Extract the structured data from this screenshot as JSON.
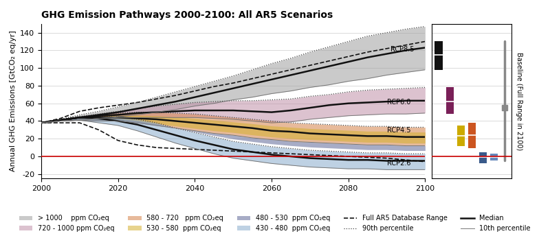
{
  "chart_data": [
    {
      "type": "line",
      "title": "GHG Emission Pathways 2000-2100: All AR5 Scenarios",
      "y_label": "Annual GHG Emissions [GtCO₂ eq/yr]",
      "x": [
        2000,
        2005,
        2010,
        2015,
        2020,
        2025,
        2030,
        2035,
        2040,
        2045,
        2050,
        2055,
        2060,
        2065,
        2070,
        2075,
        2080,
        2085,
        2090,
        2095,
        2100
      ],
      "xlim": [
        2000,
        2100
      ],
      "xticks": [
        2000,
        2020,
        2040,
        2060,
        2080,
        2100
      ],
      "ylim": [
        -25,
        150
      ],
      "yticks": [
        -20,
        0,
        20,
        40,
        60,
        80,
        100,
        120,
        140
      ],
      "grid": "y",
      "legend": "lower center",
      "series": [
        {
          "name": "> 1000    ppm CO₂eq",
          "type": "area",
          "color": "#a0a0a0",
          "from": [
            38,
            40,
            41,
            43,
            45,
            47,
            50,
            53,
            57,
            60,
            64,
            67,
            71,
            74,
            78,
            81,
            85,
            88,
            92,
            95,
            98
          ],
          "to": [
            38,
            42,
            47,
            51,
            56,
            61,
            67,
            73,
            79,
            85,
            91,
            98,
            105,
            111,
            118,
            124,
            130,
            136,
            140,
            144,
            147
          ]
        },
        {
          "name": "720 - 1000 ppm CO₂eq",
          "type": "area",
          "color": "#c090a8",
          "from": [
            38,
            40,
            41,
            43,
            44,
            44,
            44,
            44,
            44,
            43,
            42,
            40,
            38,
            39,
            42,
            44,
            46,
            47,
            48,
            48,
            49
          ],
          "to": [
            38,
            42,
            45,
            48,
            51,
            54,
            57,
            59,
            61,
            62,
            63,
            63,
            64,
            65,
            68,
            70,
            73,
            75,
            76,
            77,
            78
          ]
        },
        {
          "name": "580 - 720   ppm CO₂eq",
          "type": "area",
          "color": "#d4824a",
          "from": [
            38,
            40,
            41,
            40,
            40,
            38,
            35,
            32,
            29,
            26,
            24,
            21,
            19,
            17,
            16,
            15,
            14,
            13,
            13,
            12,
            12
          ],
          "to": [
            38,
            42,
            45,
            47,
            49,
            50,
            50,
            49,
            48,
            46,
            44,
            42,
            40,
            38,
            37,
            36,
            35,
            34,
            34,
            33,
            33
          ]
        },
        {
          "name": "530 - 580  ppm CO₂eq",
          "type": "area",
          "color": "#d4b030",
          "from": [
            38,
            40.3,
            41.9,
            41.2,
            41.2,
            39.5,
            37.1,
            34.4,
            31.7,
            29,
            27,
            24.3,
            22,
            20.3,
            19,
            18,
            17,
            16,
            16,
            15,
            15
          ],
          "to": [
            38,
            41.5,
            44.5,
            45.5,
            46.5,
            46.5,
            46,
            44.5,
            43,
            41,
            39,
            37,
            34.5,
            33,
            31.5,
            30.5,
            29.5,
            28.5,
            28.5,
            27.5,
            27.5
          ]
        },
        {
          "name": "480 - 530  ppm CO₂eq",
          "type": "area",
          "color": "#606898",
          "from": [
            38,
            41.2,
            43.4,
            43,
            43,
            40.4,
            36.8,
            32,
            27.8,
            23.6,
            19.8,
            16.8,
            14.2,
            12.2,
            10.6,
            9.6,
            8.6,
            7.6,
            7.6,
            6.6,
            6.6
          ],
          "to": [
            38,
            40,
            41,
            40,
            40,
            38,
            35,
            32,
            29,
            26,
            24,
            21,
            19,
            17,
            16,
            15,
            14,
            13,
            13,
            12,
            12
          ]
        },
        {
          "name": "430 - 480  ppm CO₂eq",
          "type": "area",
          "color": "#8aaccc",
          "from": [
            38,
            40,
            41,
            38,
            35,
            29,
            22,
            15,
            9,
            3,
            -2,
            -5,
            -8,
            -10,
            -12,
            -13,
            -14,
            -14,
            -15,
            -15,
            -15
          ],
          "to": [
            38,
            42,
            45,
            45,
            45,
            42,
            38,
            32,
            27,
            22,
            17,
            14,
            11,
            9,
            7,
            6,
            5,
            4,
            4,
            3,
            3
          ]
        },
        {
          "name": "Full AR5 Database Range",
          "type": "line",
          "line_style": "dashed",
          "color": "#111111",
          "lines": [
            [
              38,
              43,
              51,
              55,
              58,
              61,
              65,
              69,
              74,
              79,
              83,
              88,
              93,
              98,
              103,
              108,
              113,
              118,
              122,
              126,
              130
            ],
            [
              38,
              38,
              38,
              30,
              18,
              13,
              10,
              9,
              8,
              7,
              6,
              5,
              4,
              3,
              2,
              1,
              0,
              -1,
              -2,
              -4,
              -6
            ]
          ]
        },
        {
          "name": "90th percentile",
          "type": "line",
          "line_style": "dotted",
          "color": "#444444",
          "lines": [
            [
              38,
              42,
              47,
              51,
              56,
              61,
              67,
              73,
              79,
              85,
              91,
              98,
              105,
              111,
              118,
              124,
              130,
              136,
              140,
              144,
              147
            ],
            [
              38,
              42,
              45,
              48,
              51,
              54,
              57,
              59,
              61,
              62,
              63,
              63,
              64,
              65,
              68,
              70,
              73,
              75,
              76,
              77,
              78
            ],
            [
              38,
              42,
              45,
              47,
              49,
              50,
              50,
              49,
              48,
              46,
              44,
              42,
              40,
              38,
              37,
              36,
              35,
              34,
              34,
              33,
              33
            ],
            [
              38,
              42,
              45,
              45,
              45,
              42,
              38,
              32,
              27,
              22,
              17,
              14,
              11,
              9,
              7,
              6,
              5,
              4,
              4,
              3,
              3
            ]
          ]
        },
        {
          "name": "Median",
          "type": "line",
          "line_style": "solid",
          "color": "#111111",
          "lines": [
            [
              38,
              41,
              44,
              47,
              50,
              54,
              58,
              62,
              67,
              72,
              77,
              82,
              87,
              92,
              97,
              102,
              107,
              112,
              116,
              120,
              123
            ],
            [
              38,
              41,
              44,
              46,
              47,
              49,
              50,
              51,
              52,
              52,
              52,
              51,
              50,
              52,
              55,
              58,
              60,
              61,
              62,
              63,
              63
            ],
            [
              38,
              41,
              44,
              44,
              44,
              43,
              42,
              40,
              38,
              36,
              34,
              32,
              29,
              28,
              26,
              25,
              24,
              23,
              23,
              22,
              22
            ],
            [
              38,
              41,
              44,
              43,
              40,
              36,
              30,
              24,
              18,
              13,
              8,
              5,
              2,
              0,
              -2,
              -3,
              -4,
              -4,
              -5,
              -5,
              -5
            ]
          ]
        },
        {
          "name": "10th percentile",
          "type": "line",
          "line_style": "solid",
          "color": "#777777",
          "lines": [
            [
              38,
              40,
              41,
              43,
              45,
              47,
              50,
              53,
              57,
              60,
              64,
              67,
              71,
              74,
              78,
              81,
              85,
              88,
              92,
              95,
              98
            ],
            [
              38,
              40,
              41,
              43,
              44,
              44,
              44,
              44,
              44,
              43,
              42,
              40,
              38,
              39,
              42,
              44,
              46,
              47,
              48,
              48,
              49
            ],
            [
              38,
              40,
              41,
              40,
              40,
              38,
              35,
              32,
              29,
              26,
              24,
              21,
              19,
              17,
              16,
              15,
              14,
              13,
              13,
              12,
              12
            ],
            [
              38,
              40,
              41,
              38,
              35,
              29,
              22,
              15,
              9,
              3,
              -2,
              -5,
              -8,
              -10,
              -12,
              -13,
              -14,
              -14,
              -15,
              -15,
              -15
            ]
          ]
        }
      ],
      "hlines": [
        {
          "y": 0,
          "color": "#cc0000"
        }
      ],
      "annotations": [
        {
          "text": "RCP8.5",
          "x": 2091,
          "y": 119
        },
        {
          "text": "RCP6.0",
          "x": 2090,
          "y": 59
        },
        {
          "text": "RCP4.5",
          "x": 2090,
          "y": 27
        },
        {
          "text": "RCP2.6",
          "x": 2090,
          "y": -10
        }
      ]
    },
    {
      "type": "bar",
      "ylim": [
        -25,
        150
      ],
      "yticks": [
        -20,
        0,
        20,
        40,
        60,
        80,
        100,
        120,
        140
      ],
      "grid": "y",
      "tick_labels": false,
      "bars": [
        {
          "bottom": 98,
          "top": 130,
          "median": 115,
          "color": "#111111"
        },
        {
          "bottom": 48,
          "top": 78,
          "median": 62,
          "color": "#7a2058"
        },
        {
          "bottom": 12,
          "top": 35,
          "median": 23,
          "color": "#ccaa00"
        },
        {
          "bottom": 9,
          "top": 38,
          "median": 24,
          "color": "#cc5520"
        },
        {
          "bottom": -8,
          "top": 5,
          "median": -1,
          "color": "#3a5a8a"
        },
        {
          "bottom": -5,
          "top": 3,
          "median": -1,
          "color": "#6688bb"
        }
      ],
      "range": {
        "name": "Baseline (Full Range in 2100)",
        "low": -5,
        "high": 130,
        "point": 55,
        "marker": "square",
        "color": "#888888"
      },
      "hlines": [
        {
          "y": 0,
          "color": "#cc0000"
        }
      ]
    }
  ]
}
